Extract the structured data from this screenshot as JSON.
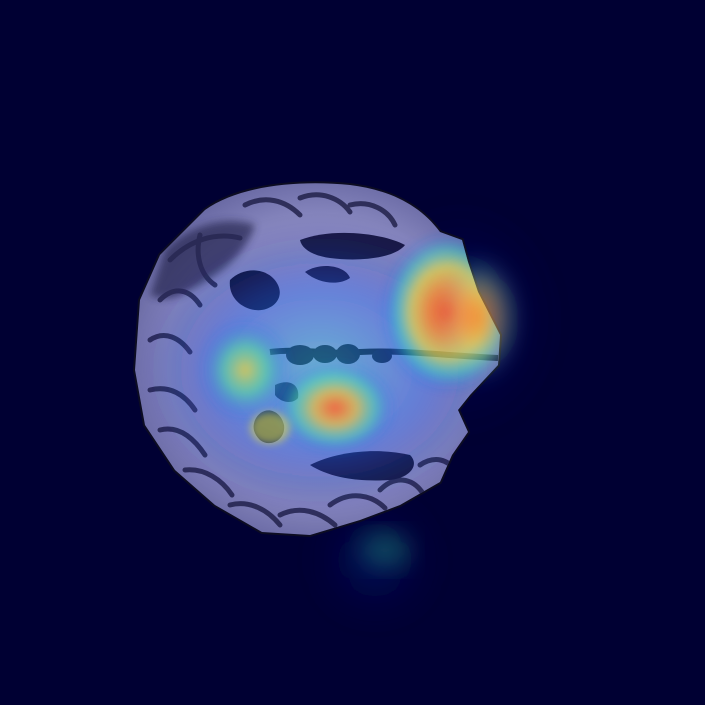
{
  "image": {
    "kind": "brain MRI axial slice with heatmap overlay",
    "colors": {
      "background": "#000033",
      "tissue_light": "#b8b8e0",
      "tissue_mid": "#8a8ac4",
      "tissue_dark": "#2a2a66",
      "heat_low": "#2040ff",
      "heat_mid": "#30e0c0",
      "heat_warm": "#f0e040",
      "heat_hot": "#ff4020"
    }
  }
}
